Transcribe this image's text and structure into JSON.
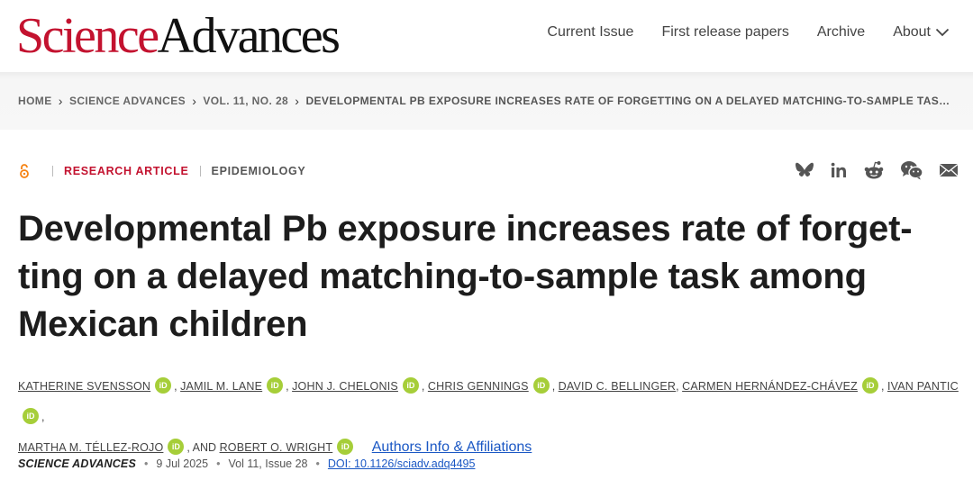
{
  "header": {
    "logo_part1": "Science",
    "logo_part2": "Advances",
    "nav": {
      "current_issue": "Current Issue",
      "first_release": "First release papers",
      "archive": "Archive",
      "about": "About"
    }
  },
  "breadcrumb": {
    "items": [
      "HOME",
      "SCIENCE ADVANCES",
      "VOL. 11, NO. 28",
      "DEVELOPMENTAL PB EXPOSURE INCREASES RATE OF FORGETTING ON A DELAYED MATCHING-TO-SAMPLE TASK AMONG MEXICAN CHILDREN"
    ]
  },
  "article": {
    "access": "open-access",
    "type": "RESEARCH ARTICLE",
    "subject": "EPIDEMIOLOGY",
    "title": "Developmental Pb exposure increases rate of forget-ting on a delayed matching-to-sample task among Mexican children",
    "authors": [
      "KATHERINE SVENSSON",
      "JAMIL M. LANE",
      "JOHN J. CHELONIS",
      "CHRIS GENNINGS",
      "DAVID C. BELLINGER",
      "CARMEN HERNÁNDEZ-CHÁVEZ",
      "IVAN PANTIC",
      "MARTHA M. TÉLLEZ-ROJO",
      "ROBERT O. WRIGHT"
    ],
    "orcid_label": "iD",
    "and_word": "AND",
    "affiliations_link": "Authors Info & Affiliations",
    "citation": {
      "journal": "SCIENCE ADVANCES",
      "date": "9 Jul 2025",
      "volume": "Vol 11, Issue 28",
      "doi": "DOI: 10.1126/sciadv.adq4495",
      "dot": "•"
    }
  },
  "share_icons": [
    "bluesky-icon",
    "linkedin-icon",
    "reddit-icon",
    "wechat-icon",
    "email-icon"
  ],
  "colors": {
    "brand_red": "#c3122f",
    "link_blue": "#1a57c4",
    "orcid_green": "#a6ce39",
    "oa_orange": "#f68212"
  }
}
